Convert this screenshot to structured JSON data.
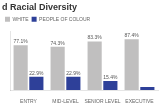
{
  "chart_data": {
    "type": "bar",
    "title": "d Racial Diversity",
    "categories": [
      "ENTRY",
      "MID-LEVEL",
      "SENIOR LEVEL",
      "EXECUTIVE"
    ],
    "series": [
      {
        "name": "WHITE",
        "color": "#c0bfbf",
        "values": [
          77.1,
          74.3,
          83.3,
          87.4
        ],
        "value_labels": [
          "77.1%",
          "74.3%",
          "83.3%",
          "87.4%"
        ]
      },
      {
        "name": "PEOPLE OF COLOUR",
        "color": "#2e4099",
        "values": [
          22.9,
          22.9,
          15.4,
          5.0
        ],
        "value_labels": [
          "22.9%",
          "22.9%",
          "15.4%",
          null
        ]
      }
    ],
    "ylim": [
      0,
      100
    ],
    "grid": false,
    "legend": "upper left",
    "data_labels": true,
    "tick_labels": "x"
  }
}
